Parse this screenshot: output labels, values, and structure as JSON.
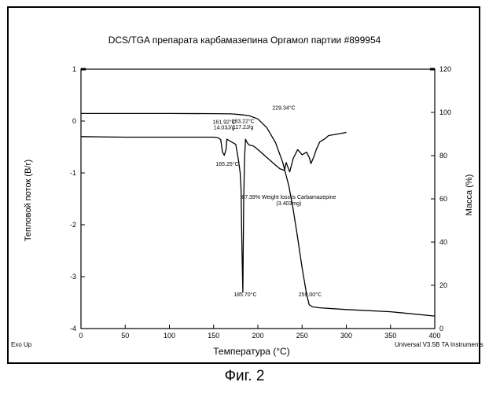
{
  "chart_data": {
    "type": "line",
    "title": "DCS/TGA препарата карбамазепина Оргамол партии #899954",
    "xlabel": "Температура (°С)",
    "ylabel_left": "Тепловой поток (В/г)",
    "ylabel_right": "Масса (%)",
    "xlim": [
      0,
      400
    ],
    "ylim_left": [
      -4,
      1
    ],
    "ylim_right": [
      0,
      120
    ],
    "x_ticks": [
      "0",
      "50",
      "100",
      "150",
      "200",
      "250",
      "300",
      "350",
      "400"
    ],
    "y_ticks_left": [
      "1",
      "0",
      "-1",
      "-2",
      "-3",
      "-4"
    ],
    "y_ticks_right": [
      "120",
      "100",
      "80",
      "60",
      "40",
      "20",
      "0"
    ],
    "series": [
      {
        "axis": "left",
        "points": [
          [
            0,
            -0.3
          ],
          [
            50,
            -0.31
          ],
          [
            100,
            -0.31
          ],
          [
            150,
            -0.31
          ],
          [
            155,
            -0.32
          ],
          [
            158,
            -0.36
          ],
          [
            160,
            -0.6
          ],
          [
            162,
            -0.66
          ],
          [
            164,
            -0.55
          ],
          [
            165,
            -0.35
          ],
          [
            170,
            -0.4
          ],
          [
            175,
            -0.45
          ],
          [
            178,
            -0.75
          ],
          [
            180,
            -1.0
          ],
          [
            181,
            -1.3
          ],
          [
            182,
            -2.5
          ],
          [
            183,
            -3.3
          ],
          [
            184,
            -1.5
          ],
          [
            185,
            -0.7
          ],
          [
            186,
            -0.35
          ],
          [
            188,
            -0.42
          ],
          [
            190,
            -0.46
          ],
          [
            195,
            -0.48
          ],
          [
            200,
            -0.55
          ],
          [
            210,
            -0.7
          ],
          [
            220,
            -0.85
          ],
          [
            225,
            -0.92
          ],
          [
            230,
            -0.95
          ],
          [
            232,
            -0.8
          ],
          [
            236,
            -0.98
          ],
          [
            240,
            -0.72
          ],
          [
            245,
            -0.55
          ],
          [
            250,
            -0.65
          ],
          [
            255,
            -0.6
          ],
          [
            258,
            -0.7
          ],
          [
            260,
            -0.82
          ],
          [
            263,
            -0.7
          ],
          [
            266,
            -0.55
          ],
          [
            270,
            -0.4
          ],
          [
            275,
            -0.35
          ],
          [
            280,
            -0.28
          ],
          [
            290,
            -0.25
          ],
          [
            300,
            -0.22
          ]
        ]
      },
      {
        "axis": "right",
        "points": [
          [
            0,
            99.5
          ],
          [
            50,
            99.5
          ],
          [
            100,
            99.5
          ],
          [
            150,
            99.4
          ],
          [
            170,
            99.3
          ],
          [
            180,
            99.0
          ],
          [
            190,
            98.5
          ],
          [
            200,
            97.0
          ],
          [
            210,
            93.0
          ],
          [
            220,
            86.0
          ],
          [
            228,
            77.0
          ],
          [
            235,
            66.0
          ],
          [
            240,
            55.0
          ],
          [
            245,
            42.0
          ],
          [
            250,
            28.0
          ],
          [
            255,
            16.0
          ],
          [
            258,
            11.0
          ],
          [
            262,
            10.0
          ],
          [
            270,
            9.6
          ],
          [
            300,
            8.8
          ],
          [
            350,
            7.8
          ],
          [
            400,
            5.8
          ]
        ]
      }
    ],
    "annotations": [
      {
        "text": "161.92°C",
        "x": 161.9,
        "y": -0.05,
        "axis": "left"
      },
      {
        "text": "14.03J/g",
        "x": 161.9,
        "y": -0.16,
        "axis": "left"
      },
      {
        "text": "183.22°C",
        "x": 183.2,
        "y": -0.04,
        "axis": "left"
      },
      {
        "text": "117.2J/g",
        "x": 183.2,
        "y": -0.15,
        "axis": "left"
      },
      {
        "text": "165.25°C",
        "x": 165.3,
        "y": -0.86,
        "axis": "left"
      },
      {
        "text": "185.70°C",
        "x": 185.7,
        "y": -3.38,
        "axis": "left"
      },
      {
        "text": "229.34°C",
        "x": 229.3,
        "y": 0.22,
        "axis": "left"
      },
      {
        "text": "259.00°C",
        "x": 259.0,
        "y": -3.38,
        "axis": "left"
      },
      {
        "text": "87.39% Weight loss is Carbamazepine",
        "x": 235,
        "y": -1.5,
        "axis": "left"
      },
      {
        "text": "(3.403mg)",
        "x": 235,
        "y": -1.62,
        "axis": "left"
      }
    ]
  },
  "footer": {
    "exo_label": "Exo Up",
    "instrument_label": "Universal V3.5B TA Instruments"
  },
  "figure_caption": "Фиг. 2"
}
